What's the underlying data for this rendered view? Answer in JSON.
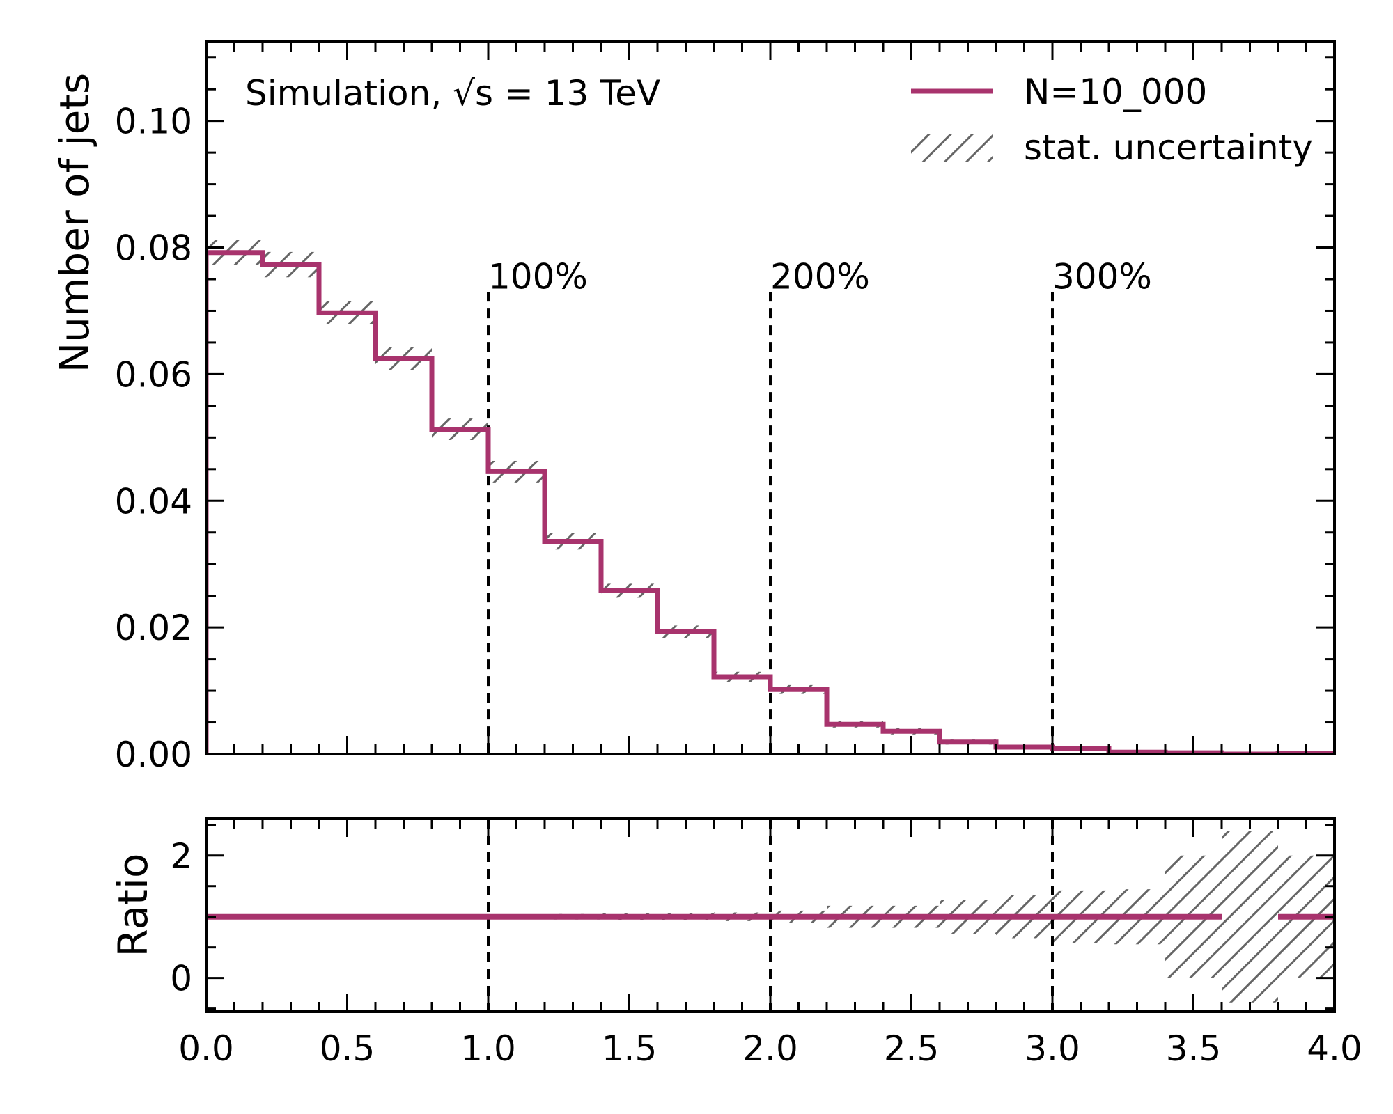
{
  "chart_data": {
    "type": "histogram-with-ratio",
    "bin_edges": [
      0.0,
      0.2,
      0.4,
      0.6,
      0.8,
      1.0,
      1.2,
      1.4,
      1.6,
      1.8,
      2.0,
      2.2,
      2.4,
      2.6,
      2.8,
      3.0,
      3.2,
      3.4,
      3.6,
      3.8,
      4.0
    ],
    "main": {
      "ylabel": "Number of jets",
      "xlim": [
        0.0,
        4.0
      ],
      "ylim": [
        0.0,
        0.1125
      ],
      "yticks": [
        0.0,
        0.02,
        0.04,
        0.06,
        0.08,
        0.1
      ],
      "ytick_labels": [
        "0.00",
        "0.02",
        "0.04",
        "0.06",
        "0.08",
        "0.10"
      ],
      "series": [
        {
          "name": "N=10_000",
          "color": "#a8336d",
          "values": [
            0.0792,
            0.0773,
            0.0697,
            0.0625,
            0.0513,
            0.0446,
            0.0336,
            0.0258,
            0.0193,
            0.0122,
            0.0102,
            0.0047,
            0.0036,
            0.0019,
            0.0011,
            0.0009,
            0.0003,
            0.0002,
            0.0,
            0.0001
          ]
        }
      ],
      "uncertainty": {
        "name": "stat. uncertainty",
        "color": "#666666",
        "errors": [
          0.002,
          0.002,
          0.0018,
          0.0018,
          0.0017,
          0.0017,
          0.0013,
          0.0011,
          0.001,
          0.0008,
          0.0007,
          0.0005,
          0.0005,
          0.0004,
          0.0003,
          0.0003,
          0.0002,
          0.0001,
          0.0,
          0.0001
        ]
      },
      "annotation": "Simulation, √s = 13 TeV",
      "markers": [
        {
          "x": 1.0,
          "label": "100%"
        },
        {
          "x": 2.0,
          "label": "200%"
        },
        {
          "x": 3.0,
          "label": "300%"
        }
      ],
      "legend_position": "top-right"
    },
    "ratio": {
      "ylabel": "Ratio",
      "ylim": [
        -0.55,
        2.6
      ],
      "yticks": [
        0,
        2
      ],
      "ytick_labels": [
        "0",
        "2"
      ],
      "values": [
        1,
        1,
        1,
        1,
        1,
        1,
        1,
        1,
        1,
        1,
        1,
        1,
        1,
        1,
        1,
        1,
        1,
        1,
        null,
        1
      ],
      "band_low": [
        0.975,
        0.975,
        0.975,
        0.97,
        0.965,
        0.96,
        0.955,
        0.945,
        0.94,
        0.93,
        0.9,
        0.82,
        0.82,
        0.72,
        0.65,
        0.57,
        0.55,
        0.0,
        -0.4,
        0.0
      ],
      "band_high": [
        1.025,
        1.025,
        1.025,
        1.03,
        1.035,
        1.04,
        1.045,
        1.055,
        1.06,
        1.07,
        1.1,
        1.18,
        1.18,
        1.28,
        1.35,
        1.43,
        1.45,
        2.0,
        2.4,
        2.0
      ]
    },
    "xticks": [
      0.0,
      0.5,
      1.0,
      1.5,
      2.0,
      2.5,
      3.0,
      3.5,
      4.0
    ],
    "xtick_labels": [
      "0.0",
      "0.5",
      "1.0",
      "1.5",
      "2.0",
      "2.5",
      "3.0",
      "3.5",
      "4.0"
    ],
    "grid": false
  }
}
